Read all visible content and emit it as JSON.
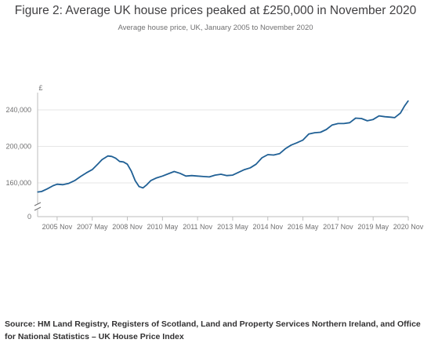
{
  "header": {
    "title": "Figure 2: Average UK house prices peaked at £250,000 in November 2020",
    "subtitle": "Average house price, UK, January 2005 to November 2020"
  },
  "footer": {
    "source": "Source: HM Land Registry, Registers of Scotland, Land and Property Services Northern Ireland, and Office for National Statistics – UK House Price Index"
  },
  "chart_data": {
    "type": "line",
    "title": "Figure 2: Average UK house prices peaked at £250,000 in November 2020",
    "subtitle": "Average house price, UK, January 2005 to November 2020",
    "ylabel": "£",
    "xlabel": "",
    "x_ticks": [
      "2005 Nov",
      "2007 May",
      "2008 Nov",
      "2010 May",
      "2011 Nov",
      "2013 May",
      "2014 Nov",
      "2016 May",
      "2017 Nov",
      "2019 May",
      "2020 Nov"
    ],
    "y_ticks": [
      0,
      160000,
      200000,
      240000
    ],
    "y_tick_labels": [
      "0",
      "160,000",
      "200,000",
      "240,000"
    ],
    "ylim": [
      0,
      250000
    ],
    "axis_break": true,
    "grid": true,
    "line_color": "#206095",
    "series": [
      {
        "points": [
          {
            "x": "2005-01",
            "y": 150000
          },
          {
            "x": "2005-03",
            "y": 150500
          },
          {
            "x": "2005-06",
            "y": 153500
          },
          {
            "x": "2005-09",
            "y": 157000
          },
          {
            "x": "2005-11",
            "y": 158500
          },
          {
            "x": "2006-02",
            "y": 158000
          },
          {
            "x": "2006-05",
            "y": 159500
          },
          {
            "x": "2006-08",
            "y": 162500
          },
          {
            "x": "2006-11",
            "y": 167000
          },
          {
            "x": "2007-02",
            "y": 171000
          },
          {
            "x": "2007-05",
            "y": 174500
          },
          {
            "x": "2007-08",
            "y": 181000
          },
          {
            "x": "2007-10",
            "y": 185500
          },
          {
            "x": "2008-01",
            "y": 189500
          },
          {
            "x": "2008-03",
            "y": 189000
          },
          {
            "x": "2008-05",
            "y": 187000
          },
          {
            "x": "2008-07",
            "y": 183500
          },
          {
            "x": "2008-09",
            "y": 183000
          },
          {
            "x": "2008-11",
            "y": 180500
          },
          {
            "x": "2009-01",
            "y": 173000
          },
          {
            "x": "2009-03",
            "y": 162500
          },
          {
            "x": "2009-05",
            "y": 156000
          },
          {
            "x": "2009-07",
            "y": 154500
          },
          {
            "x": "2009-09",
            "y": 158000
          },
          {
            "x": "2009-11",
            "y": 162500
          },
          {
            "x": "2010-02",
            "y": 165500
          },
          {
            "x": "2010-05",
            "y": 167500
          },
          {
            "x": "2010-08",
            "y": 170000
          },
          {
            "x": "2010-11",
            "y": 172500
          },
          {
            "x": "2011-02",
            "y": 170500
          },
          {
            "x": "2011-05",
            "y": 167500
          },
          {
            "x": "2011-08",
            "y": 168000
          },
          {
            "x": "2011-11",
            "y": 167500
          },
          {
            "x": "2012-02",
            "y": 167000
          },
          {
            "x": "2012-05",
            "y": 166500
          },
          {
            "x": "2012-08",
            "y": 168500
          },
          {
            "x": "2012-11",
            "y": 169500
          },
          {
            "x": "2013-02",
            "y": 168000
          },
          {
            "x": "2013-05",
            "y": 168500
          },
          {
            "x": "2013-08",
            "y": 171500
          },
          {
            "x": "2013-11",
            "y": 174500
          },
          {
            "x": "2014-02",
            "y": 176500
          },
          {
            "x": "2014-05",
            "y": 180500
          },
          {
            "x": "2014-08",
            "y": 187500
          },
          {
            "x": "2014-11",
            "y": 191000
          },
          {
            "x": "2015-02",
            "y": 190500
          },
          {
            "x": "2015-05",
            "y": 192000
          },
          {
            "x": "2015-08",
            "y": 197500
          },
          {
            "x": "2015-11",
            "y": 201500
          },
          {
            "x": "2016-02",
            "y": 204000
          },
          {
            "x": "2016-05",
            "y": 207000
          },
          {
            "x": "2016-08",
            "y": 213500
          },
          {
            "x": "2016-11",
            "y": 215000
          },
          {
            "x": "2017-02",
            "y": 215500
          },
          {
            "x": "2017-05",
            "y": 218500
          },
          {
            "x": "2017-08",
            "y": 223500
          },
          {
            "x": "2017-11",
            "y": 225000
          },
          {
            "x": "2018-02",
            "y": 225000
          },
          {
            "x": "2018-05",
            "y": 226000
          },
          {
            "x": "2018-08",
            "y": 231000
          },
          {
            "x": "2018-11",
            "y": 230500
          },
          {
            "x": "2019-02",
            "y": 228000
          },
          {
            "x": "2019-05",
            "y": 229500
          },
          {
            "x": "2019-08",
            "y": 233500
          },
          {
            "x": "2019-11",
            "y": 232500
          },
          {
            "x": "2020-02",
            "y": 232000
          },
          {
            "x": "2020-04",
            "y": 231500
          },
          {
            "x": "2020-07",
            "y": 236500
          },
          {
            "x": "2020-09",
            "y": 244000
          },
          {
            "x": "2020-11",
            "y": 250000
          }
        ]
      }
    ]
  }
}
